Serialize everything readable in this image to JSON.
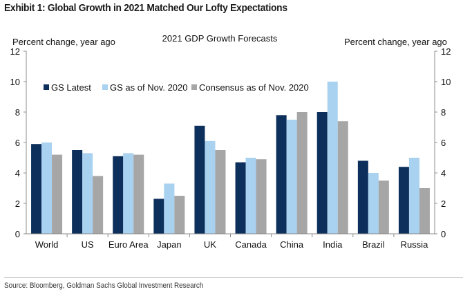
{
  "exhibit_title": "Exhibit 1: Global Growth in 2021 Matched Our Lofty Expectations",
  "source": "Source: Bloomberg, Goldman Sachs Global Investment Research",
  "chart_data": {
    "type": "bar",
    "title": "2021 GDP Growth Forecasts",
    "ylabel_left": "Percent change, year ago",
    "ylabel_right": "Percent change, year ago",
    "xlabel": "",
    "ylim": [
      0,
      12
    ],
    "yticks": [
      0,
      2,
      4,
      6,
      8,
      10,
      12
    ],
    "grid": false,
    "legend_position": "top-left",
    "categories": [
      "World",
      "US",
      "Euro Area",
      "Japan",
      "UK",
      "Canada",
      "China",
      "India",
      "Brazil",
      "Russia"
    ],
    "series": [
      {
        "name": "GS Latest",
        "color": "#0d2f5b",
        "values": [
          5.9,
          5.5,
          5.1,
          2.3,
          7.1,
          4.7,
          7.8,
          8.0,
          4.8,
          4.4
        ]
      },
      {
        "name": "GS as of Nov. 2020",
        "color": "#a9d1f0",
        "values": [
          6.0,
          5.3,
          5.3,
          3.3,
          6.1,
          5.0,
          7.5,
          10.0,
          4.0,
          5.0
        ]
      },
      {
        "name": "Consensus as of Nov. 2020",
        "color": "#a6a6a6",
        "values": [
          5.2,
          3.8,
          5.2,
          2.5,
          5.5,
          4.9,
          8.0,
          7.4,
          3.5,
          3.0
        ]
      }
    ]
  }
}
